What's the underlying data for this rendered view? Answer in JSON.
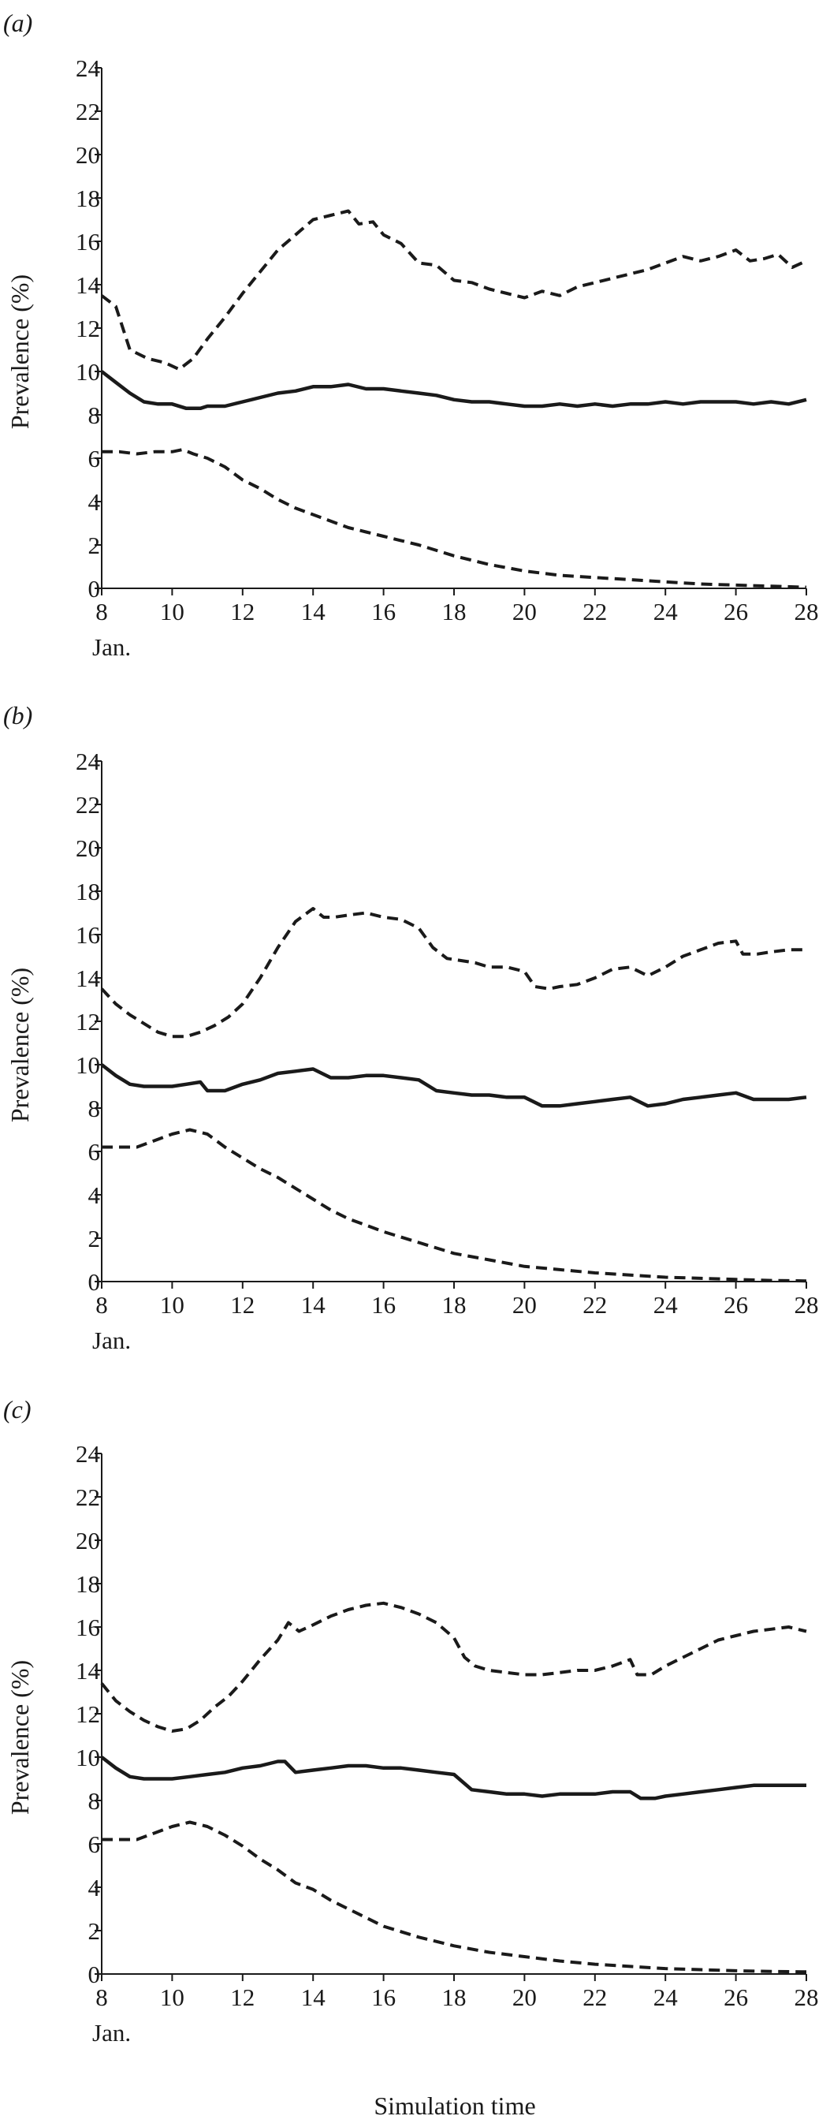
{
  "figure": {
    "xlabel_common": "Simulation time"
  },
  "chart_data": [
    {
      "type": "line",
      "panel_label": "(a)",
      "ylabel": "Prevalence (%)",
      "ylim": [
        0,
        24
      ],
      "yticks": [
        0,
        2,
        4,
        6,
        8,
        10,
        12,
        14,
        16,
        18,
        20,
        22,
        24
      ],
      "xlim": [
        8,
        28
      ],
      "xticks": [
        8,
        10,
        12,
        14,
        16,
        18,
        20,
        22,
        24,
        26,
        28
      ],
      "x_unit_label": "Jan.",
      "grid": false,
      "series": [
        {
          "style": "dashed",
          "color": "#1a1a1a",
          "x": [
            8,
            8.4,
            8.8,
            9.3,
            9.8,
            10.2,
            10.6,
            11,
            11.5,
            12,
            12.5,
            13,
            13.5,
            14,
            14.5,
            15,
            15.3,
            15.7,
            16,
            16.5,
            17,
            17.5,
            18,
            18.5,
            19,
            19.5,
            20,
            20.5,
            21,
            21.5,
            22,
            22.5,
            23,
            23.5,
            24,
            24.5,
            25,
            25.5,
            26,
            26.4,
            26.8,
            27.2,
            27.6,
            28
          ],
          "y": [
            13.5,
            13,
            11,
            10.6,
            10.4,
            10.1,
            10.6,
            11.5,
            12.5,
            13.6,
            14.6,
            15.6,
            16.3,
            17,
            17.2,
            17.4,
            16.8,
            16.9,
            16.3,
            15.9,
            15,
            14.9,
            14.2,
            14.1,
            13.8,
            13.6,
            13.4,
            13.7,
            13.5,
            13.9,
            14.1,
            14.3,
            14.5,
            14.7,
            15,
            15.3,
            15.1,
            15.3,
            15.6,
            15.1,
            15.2,
            15.4,
            14.8,
            15.1
          ]
        },
        {
          "style": "solid",
          "color": "#1a1a1a",
          "x": [
            8,
            8.4,
            8.8,
            9.2,
            9.6,
            10,
            10.4,
            10.8,
            11,
            11.5,
            12,
            12.5,
            13,
            13.5,
            14,
            14.5,
            15,
            15.5,
            16,
            16.5,
            17,
            17.5,
            18,
            18.5,
            19,
            19.5,
            20,
            20.5,
            21,
            21.5,
            22,
            22.5,
            23,
            23.5,
            24,
            24.5,
            25,
            25.5,
            26,
            26.5,
            27,
            27.5,
            28
          ],
          "y": [
            10,
            9.5,
            9,
            8.6,
            8.5,
            8.5,
            8.3,
            8.3,
            8.4,
            8.4,
            8.6,
            8.8,
            9,
            9.1,
            9.3,
            9.3,
            9.4,
            9.2,
            9.2,
            9.1,
            9,
            8.9,
            8.7,
            8.6,
            8.6,
            8.5,
            8.4,
            8.4,
            8.5,
            8.4,
            8.5,
            8.4,
            8.5,
            8.5,
            8.6,
            8.5,
            8.6,
            8.6,
            8.6,
            8.5,
            8.6,
            8.5,
            8.7
          ]
        },
        {
          "style": "dashed",
          "color": "#1a1a1a",
          "x": [
            8,
            8.5,
            9,
            9.5,
            10,
            10.3,
            10.6,
            11,
            11.5,
            12,
            12.5,
            13,
            13.5,
            14,
            14.5,
            15,
            15.5,
            16,
            17,
            18,
            19,
            20,
            21,
            22,
            23,
            24,
            25,
            26,
            27,
            28
          ],
          "y": [
            6.3,
            6.3,
            6.2,
            6.3,
            6.3,
            6.4,
            6.2,
            6,
            5.6,
            5,
            4.6,
            4.1,
            3.7,
            3.4,
            3.1,
            2.8,
            2.6,
            2.4,
            2,
            1.5,
            1.1,
            0.8,
            0.6,
            0.5,
            0.4,
            0.3,
            0.2,
            0.15,
            0.1,
            0.05
          ]
        }
      ]
    },
    {
      "type": "line",
      "panel_label": "(b)",
      "ylabel": "Prevalence (%)",
      "ylim": [
        0,
        24
      ],
      "yticks": [
        0,
        2,
        4,
        6,
        8,
        10,
        12,
        14,
        16,
        18,
        20,
        22,
        24
      ],
      "xlim": [
        8,
        28
      ],
      "xticks": [
        8,
        10,
        12,
        14,
        16,
        18,
        20,
        22,
        24,
        26,
        28
      ],
      "x_unit_label": "Jan.",
      "grid": false,
      "series": [
        {
          "style": "dashed",
          "color": "#1a1a1a",
          "x": [
            8,
            8.4,
            8.8,
            9.2,
            9.6,
            10,
            10.4,
            10.8,
            11.2,
            11.6,
            12,
            12.5,
            13,
            13.5,
            14,
            14.3,
            14.6,
            15,
            15.5,
            16,
            16.5,
            17,
            17.4,
            17.8,
            18.2,
            18.6,
            19,
            19.5,
            20,
            20.3,
            20.7,
            21,
            21.5,
            22,
            22.5,
            23,
            23.5,
            24,
            24.5,
            25,
            25.5,
            26,
            26.2,
            26.6,
            27,
            27.5,
            28
          ],
          "y": [
            13.5,
            12.8,
            12.3,
            11.9,
            11.5,
            11.3,
            11.3,
            11.5,
            11.8,
            12.2,
            12.8,
            14,
            15.4,
            16.6,
            17.2,
            16.8,
            16.8,
            16.9,
            17,
            16.8,
            16.7,
            16.3,
            15.4,
            14.9,
            14.8,
            14.7,
            14.5,
            14.5,
            14.3,
            13.6,
            13.5,
            13.6,
            13.7,
            14,
            14.4,
            14.5,
            14.1,
            14.5,
            15,
            15.3,
            15.6,
            15.7,
            15.1,
            15.1,
            15.2,
            15.3,
            15.3
          ]
        },
        {
          "style": "solid",
          "color": "#1a1a1a",
          "x": [
            8,
            8.4,
            8.8,
            9.2,
            9.6,
            10,
            10.4,
            10.8,
            11,
            11.5,
            12,
            12.5,
            13,
            13.5,
            14,
            14.5,
            15,
            15.5,
            16,
            16.5,
            17,
            17.5,
            18,
            18.5,
            19,
            19.5,
            20,
            20.5,
            21,
            21.5,
            22,
            22.5,
            23,
            23.5,
            24,
            24.5,
            25,
            25.5,
            26,
            26.5,
            27,
            27.5,
            28
          ],
          "y": [
            10,
            9.5,
            9.1,
            9,
            9,
            9,
            9.1,
            9.2,
            8.8,
            8.8,
            9.1,
            9.3,
            9.6,
            9.7,
            9.8,
            9.4,
            9.4,
            9.5,
            9.5,
            9.4,
            9.3,
            8.8,
            8.7,
            8.6,
            8.6,
            8.5,
            8.5,
            8.1,
            8.1,
            8.2,
            8.3,
            8.4,
            8.5,
            8.1,
            8.2,
            8.4,
            8.5,
            8.6,
            8.7,
            8.4,
            8.4,
            8.4,
            8.5
          ]
        },
        {
          "style": "dashed",
          "color": "#1a1a1a",
          "x": [
            8,
            8.5,
            9,
            9.5,
            10,
            10.5,
            11,
            11.5,
            12,
            12.5,
            13,
            13.5,
            14,
            14.5,
            15,
            15.5,
            16,
            17,
            18,
            19,
            20,
            21,
            22,
            23,
            24,
            25,
            26,
            27,
            28
          ],
          "y": [
            6.2,
            6.2,
            6.2,
            6.5,
            6.8,
            7,
            6.8,
            6.2,
            5.7,
            5.2,
            4.8,
            4.3,
            3.8,
            3.3,
            2.9,
            2.6,
            2.3,
            1.8,
            1.3,
            1,
            0.7,
            0.55,
            0.4,
            0.3,
            0.2,
            0.15,
            0.1,
            0.05,
            0.03
          ]
        }
      ]
    },
    {
      "type": "line",
      "panel_label": "(c)",
      "ylabel": "Prevalence (%)",
      "ylim": [
        0,
        24
      ],
      "yticks": [
        0,
        2,
        4,
        6,
        8,
        10,
        12,
        14,
        16,
        18,
        20,
        22,
        24
      ],
      "xlim": [
        8,
        28
      ],
      "xticks": [
        8,
        10,
        12,
        14,
        16,
        18,
        20,
        22,
        24,
        26,
        28
      ],
      "x_unit_label": "Jan.",
      "grid": false,
      "series": [
        {
          "style": "dashed",
          "color": "#1a1a1a",
          "x": [
            8,
            8.4,
            8.8,
            9.2,
            9.6,
            10,
            10.4,
            10.8,
            11.2,
            11.6,
            12,
            12.5,
            13,
            13.3,
            13.6,
            14,
            14.5,
            15,
            15.5,
            16,
            16.5,
            17,
            17.5,
            18,
            18.3,
            18.6,
            19,
            19.5,
            20,
            20.5,
            21,
            21.5,
            22,
            22.5,
            23,
            23.2,
            23.6,
            24,
            24.5,
            25,
            25.5,
            26,
            26.5,
            27,
            27.5,
            28
          ],
          "y": [
            13.4,
            12.6,
            12.1,
            11.7,
            11.4,
            11.2,
            11.3,
            11.7,
            12.3,
            12.8,
            13.5,
            14.5,
            15.4,
            16.2,
            15.8,
            16.1,
            16.5,
            16.8,
            17,
            17.1,
            16.9,
            16.6,
            16.2,
            15.5,
            14.6,
            14.2,
            14,
            13.9,
            13.8,
            13.8,
            13.9,
            14,
            14,
            14.2,
            14.5,
            13.8,
            13.8,
            14.2,
            14.6,
            15,
            15.4,
            15.6,
            15.8,
            15.9,
            16,
            15.8
          ]
        },
        {
          "style": "solid",
          "color": "#1a1a1a",
          "x": [
            8,
            8.4,
            8.8,
            9.2,
            9.6,
            10,
            10.5,
            11,
            11.5,
            12,
            12.5,
            13,
            13.2,
            13.5,
            14,
            14.5,
            15,
            15.5,
            16,
            16.5,
            17,
            17.5,
            18,
            18.5,
            19,
            19.5,
            20,
            20.5,
            21,
            21.5,
            22,
            22.5,
            23,
            23.3,
            23.7,
            24,
            24.5,
            25,
            25.5,
            26,
            26.5,
            27,
            27.5,
            28
          ],
          "y": [
            10,
            9.5,
            9.1,
            9,
            9,
            9,
            9.1,
            9.2,
            9.3,
            9.5,
            9.6,
            9.8,
            9.8,
            9.3,
            9.4,
            9.5,
            9.6,
            9.6,
            9.5,
            9.5,
            9.4,
            9.3,
            9.2,
            8.5,
            8.4,
            8.3,
            8.3,
            8.2,
            8.3,
            8.3,
            8.3,
            8.4,
            8.4,
            8.1,
            8.1,
            8.2,
            8.3,
            8.4,
            8.5,
            8.6,
            8.7,
            8.7,
            8.7,
            8.7
          ]
        },
        {
          "style": "dashed",
          "color": "#1a1a1a",
          "x": [
            8,
            8.5,
            9,
            9.5,
            10,
            10.5,
            11,
            11.5,
            12,
            12.5,
            13,
            13.5,
            14,
            14.5,
            15,
            15.5,
            16,
            17,
            18,
            19,
            20,
            21,
            22,
            23,
            24,
            25,
            26,
            27,
            28
          ],
          "y": [
            6.2,
            6.2,
            6.2,
            6.5,
            6.8,
            7,
            6.8,
            6.4,
            5.9,
            5.3,
            4.8,
            4.2,
            3.9,
            3.4,
            3,
            2.6,
            2.2,
            1.7,
            1.3,
            1,
            0.8,
            0.6,
            0.45,
            0.35,
            0.25,
            0.2,
            0.15,
            0.12,
            0.1
          ]
        }
      ]
    }
  ]
}
